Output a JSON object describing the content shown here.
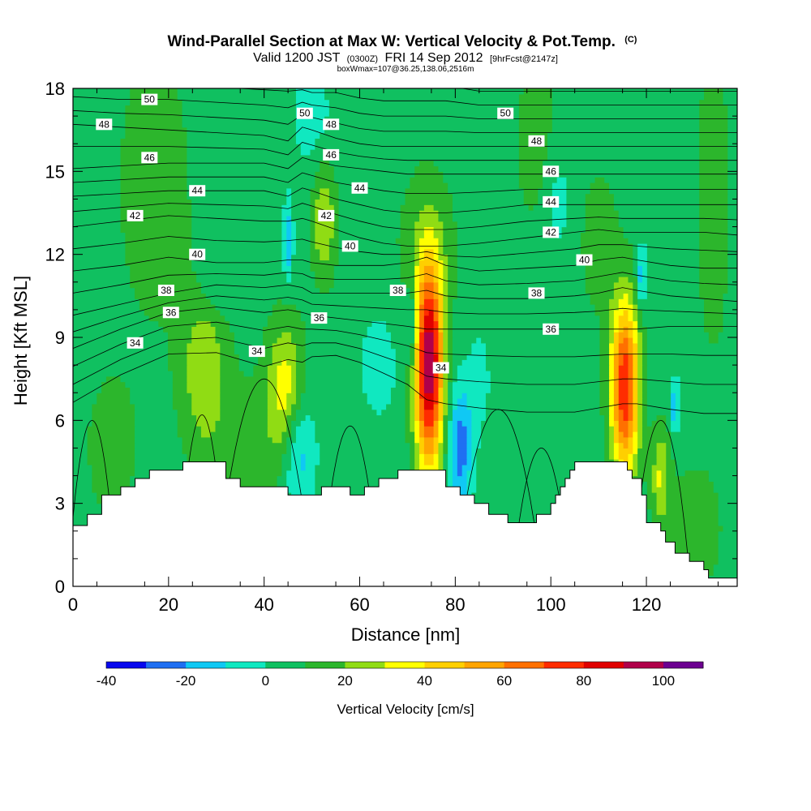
{
  "chart_data": {
    "type": "heatmap",
    "title": "Wind-Parallel Section at Max W: Vertical Velocity & Pot.Temp.",
    "title_mark": "(C)",
    "subtitle": {
      "valid": "Valid 1200 JST",
      "utc": "(0300Z)",
      "date": "FRI 14 Sep 2012",
      "forecast": "[9hrFcst@2147z]"
    },
    "box_info": "boxWmax=107@36.25,138.06,2516m",
    "xlabel": "Distance [nm]",
    "ylabel": "Height [Kft MSL]",
    "xlim": [
      0,
      139
    ],
    "ylim": [
      0,
      18
    ],
    "x_ticks": [
      "0",
      "20",
      "40",
      "60",
      "80",
      "100",
      "120"
    ],
    "y_ticks": [
      "0",
      "3",
      "6",
      "9",
      "12",
      "15",
      "18"
    ],
    "background_w": 5,
    "w_features": [
      {
        "x": 74.5,
        "z": 8.0,
        "sx": 2.1,
        "sz": 2.6,
        "w": 95
      },
      {
        "x": 115.5,
        "z": 7.2,
        "sx": 2.1,
        "sz": 2.2,
        "w": 75
      },
      {
        "x": 44.5,
        "z": 7.0,
        "sx": 2.8,
        "sz": 1.8,
        "w": 32
      },
      {
        "x": 27.5,
        "z": 7.8,
        "sx": 3.5,
        "sz": 2.2,
        "w": 22
      },
      {
        "x": 52.5,
        "z": 13.2,
        "sx": 1.8,
        "sz": 1.5,
        "w": 25
      },
      {
        "x": 123.0,
        "z": 4.0,
        "sx": 1.3,
        "sz": 1.2,
        "w": 25
      },
      {
        "x": 17.0,
        "z": 14.5,
        "sx": 6.0,
        "sz": 4.0,
        "w": 10
      },
      {
        "x": 74.0,
        "z": 12.5,
        "sx": 5.0,
        "sz": 2.0,
        "w": 10
      },
      {
        "x": 97.0,
        "z": 16.0,
        "sx": 3.0,
        "sz": 2.2,
        "w": 12
      },
      {
        "x": 134.0,
        "z": 14.0,
        "sx": 2.5,
        "sz": 4.0,
        "w": 12
      },
      {
        "x": 110.0,
        "z": 12.5,
        "sx": 3.0,
        "sz": 2.0,
        "w": 10
      },
      {
        "x": 8.0,
        "z": 5.0,
        "sx": 4.0,
        "sz": 2.0,
        "w": 10
      },
      {
        "x": 37.0,
        "z": 5.0,
        "sx": 6.0,
        "sz": 2.0,
        "w": 8
      },
      {
        "x": 130.0,
        "z": 2.0,
        "sx": 5.0,
        "sz": 2.0,
        "w": 9
      },
      {
        "x": 47.0,
        "z": 5.0,
        "sx": 2.5,
        "sz": 1.5,
        "w": -26
      },
      {
        "x": 81.0,
        "z": 5.0,
        "sx": 1.8,
        "sz": 1.6,
        "w": -30
      },
      {
        "x": 71.0,
        "z": 9.5,
        "sx": 0.9,
        "sz": 1.0,
        "w": -24
      },
      {
        "x": 45.0,
        "z": 12.5,
        "sx": 0.7,
        "sz": 1.0,
        "w": -25
      },
      {
        "x": 119.0,
        "z": 11.2,
        "sx": 0.7,
        "sz": 0.8,
        "w": -25
      },
      {
        "x": 126.0,
        "z": 6.5,
        "sx": 0.6,
        "sz": 0.7,
        "w": -25
      },
      {
        "x": 50.0,
        "z": 17.0,
        "sx": 3.0,
        "sz": 1.5,
        "w": -10
      },
      {
        "x": 101.0,
        "z": 14.0,
        "sx": 2.5,
        "sz": 1.5,
        "w": -10
      },
      {
        "x": 64.0,
        "z": 8.0,
        "sx": 3.0,
        "sz": 1.5,
        "w": -10
      },
      {
        "x": 30.0,
        "z": 11.0,
        "sx": 3.0,
        "sz": 0.8,
        "w": -10
      },
      {
        "x": 85.0,
        "z": 7.5,
        "sx": 2.0,
        "sz": 1.5,
        "w": -8
      }
    ],
    "terrain": [
      [
        0,
        2.2
      ],
      [
        3,
        2.2
      ],
      [
        3,
        2.6
      ],
      [
        6,
        2.6
      ],
      [
        6,
        3.3
      ],
      [
        10,
        3.3
      ],
      [
        10,
        3.6
      ],
      [
        13,
        3.6
      ],
      [
        13,
        3.9
      ],
      [
        16,
        3.9
      ],
      [
        16,
        4.2
      ],
      [
        23,
        4.2
      ],
      [
        23,
        4.5
      ],
      [
        32,
        4.5
      ],
      [
        32,
        3.9
      ],
      [
        35,
        3.9
      ],
      [
        35,
        3.6
      ],
      [
        45,
        3.6
      ],
      [
        45,
        3.3
      ],
      [
        52,
        3.3
      ],
      [
        52,
        3.6
      ],
      [
        58,
        3.6
      ],
      [
        58,
        3.3
      ],
      [
        61,
        3.3
      ],
      [
        61,
        3.6
      ],
      [
        64,
        3.6
      ],
      [
        64,
        3.9
      ],
      [
        68,
        3.9
      ],
      [
        68,
        4.2
      ],
      [
        78,
        4.2
      ],
      [
        78,
        3.6
      ],
      [
        81,
        3.6
      ],
      [
        81,
        3.3
      ],
      [
        84,
        3.3
      ],
      [
        84,
        3.0
      ],
      [
        87,
        3.0
      ],
      [
        87,
        2.6
      ],
      [
        91,
        2.6
      ],
      [
        91,
        2.3
      ],
      [
        97,
        2.3
      ],
      [
        97,
        2.6
      ],
      [
        100,
        2.6
      ],
      [
        100,
        3.0
      ],
      [
        101,
        3.0
      ],
      [
        101,
        3.3
      ],
      [
        102,
        3.3
      ],
      [
        102,
        3.6
      ],
      [
        103,
        3.6
      ],
      [
        103,
        3.9
      ],
      [
        104,
        3.9
      ],
      [
        104,
        4.2
      ],
      [
        105,
        4.2
      ],
      [
        105,
        4.5
      ],
      [
        116,
        4.5
      ],
      [
        116,
        4.2
      ],
      [
        117,
        4.2
      ],
      [
        117,
        3.9
      ],
      [
        119,
        3.9
      ],
      [
        119,
        3.3
      ],
      [
        120,
        3.3
      ],
      [
        120,
        2.3
      ],
      [
        123,
        2.3
      ],
      [
        123,
        2.0
      ],
      [
        124,
        2.0
      ],
      [
        124,
        1.6
      ],
      [
        126,
        1.6
      ],
      [
        126,
        1.2
      ],
      [
        129,
        1.2
      ],
      [
        129,
        0.9
      ],
      [
        132,
        0.9
      ],
      [
        132,
        0.6
      ],
      [
        133,
        0.6
      ],
      [
        133,
        0.3
      ],
      [
        139,
        0.3
      ]
    ],
    "isentrope_levels": [
      33,
      34,
      35,
      36,
      37,
      38,
      39,
      40,
      41,
      42,
      43,
      44,
      45,
      46,
      47,
      48,
      49,
      50,
      51,
      52
    ],
    "theta_heights": {
      "x": [
        0,
        10,
        20,
        30,
        40,
        45,
        48,
        50,
        55,
        60,
        65,
        70,
        74,
        78,
        85,
        95,
        105,
        110,
        115,
        118,
        125,
        132,
        139
      ],
      "34": [
        7.3,
        8.2,
        8.9,
        9.0,
        8.6,
        8.8,
        8.7,
        8.8,
        8.8,
        8.6,
        8.3,
        8.0,
        7.6,
        7.5,
        7.4,
        7.3,
        7.3,
        7.4,
        7.5,
        7.5,
        7.4,
        7.3,
        7.3
      ],
      "36": [
        8.6,
        9.3,
        9.9,
        10.1,
        9.9,
        10.0,
        9.9,
        9.8,
        9.7,
        9.6,
        9.5,
        9.4,
        9.3,
        9.3,
        9.3,
        9.3,
        9.3,
        9.3,
        9.3,
        9.3,
        9.4,
        9.4,
        9.4
      ],
      "38": [
        9.8,
        10.2,
        10.6,
        10.9,
        10.8,
        10.9,
        10.8,
        10.6,
        10.6,
        10.6,
        10.6,
        10.6,
        10.7,
        10.5,
        10.4,
        10.4,
        10.5,
        10.6,
        10.8,
        10.7,
        10.5,
        10.4,
        10.3
      ],
      "40": [
        11.4,
        11.6,
        11.9,
        11.7,
        11.7,
        11.8,
        11.8,
        11.7,
        11.6,
        11.6,
        11.6,
        11.7,
        11.9,
        11.6,
        11.4,
        11.5,
        11.6,
        11.8,
        11.9,
        11.8,
        11.6,
        11.5,
        11.5
      ],
      "42": [
        13.0,
        13.2,
        13.4,
        13.3,
        13.2,
        13.2,
        13.3,
        13.2,
        12.9,
        12.6,
        12.4,
        12.3,
        12.3,
        12.3,
        12.4,
        12.6,
        12.8,
        12.9,
        12.8,
        12.8,
        12.8,
        12.8,
        12.7
      ],
      "44": [
        14.1,
        14.2,
        14.3,
        14.3,
        14.3,
        14.1,
        14.4,
        14.3,
        14.0,
        13.8,
        13.6,
        13.5,
        13.5,
        13.5,
        13.6,
        13.8,
        13.8,
        13.8,
        13.8,
        13.8,
        13.8,
        13.8,
        13.8
      ],
      "46": [
        15.1,
        15.2,
        15.3,
        15.3,
        15.3,
        15.1,
        15.5,
        15.4,
        15.2,
        15.1,
        15.0,
        14.9,
        14.9,
        14.9,
        14.9,
        14.9,
        14.9,
        14.9,
        14.9,
        14.9,
        14.9,
        14.9,
        14.9
      ],
      "48": [
        16.7,
        16.6,
        16.5,
        16.4,
        16.3,
        16.1,
        16.6,
        16.5,
        16.2,
        16.0,
        15.9,
        15.9,
        15.9,
        15.9,
        15.9,
        15.9,
        15.9,
        15.9,
        15.9,
        15.9,
        15.9,
        15.9,
        15.9
      ],
      "50": [
        17.7,
        17.6,
        17.6,
        17.5,
        17.4,
        17.3,
        17.5,
        17.4,
        17.3,
        17.1,
        17.0,
        17.0,
        17.0,
        17.0,
        16.9,
        16.9,
        16.9,
        16.9,
        16.9,
        16.9,
        16.9,
        16.9,
        16.9
      ]
    },
    "low_contours": [
      {
        "cx": 4,
        "h": 6.0,
        "hw": 5
      },
      {
        "cx": 40,
        "h": 7.5,
        "hw": 10
      },
      {
        "cx": 27,
        "h": 6.2,
        "hw": 5
      },
      {
        "cx": 58,
        "h": 5.8,
        "hw": 6
      },
      {
        "cx": 89,
        "h": 6.4,
        "hw": 9
      },
      {
        "cx": 98,
        "h": 5.0,
        "hw": 6
      },
      {
        "cx": 123,
        "h": 6.0,
        "hw": 6
      }
    ],
    "contour_labels": [
      {
        "text": "50",
        "x": 16,
        "z": 17.6
      },
      {
        "text": "48",
        "x": 6.5,
        "z": 16.7
      },
      {
        "text": "46",
        "x": 16,
        "z": 15.5
      },
      {
        "text": "44",
        "x": 26,
        "z": 14.3
      },
      {
        "text": "42",
        "x": 13,
        "z": 13.4
      },
      {
        "text": "40",
        "x": 26,
        "z": 12.0
      },
      {
        "text": "38",
        "x": 19.5,
        "z": 10.7
      },
      {
        "text": "36",
        "x": 20.5,
        "z": 9.9
      },
      {
        "text": "34",
        "x": 13,
        "z": 8.8
      },
      {
        "text": "34",
        "x": 38.5,
        "z": 8.5
      },
      {
        "text": "50",
        "x": 48.5,
        "z": 17.1
      },
      {
        "text": "48",
        "x": 54,
        "z": 16.7
      },
      {
        "text": "46",
        "x": 54,
        "z": 15.6
      },
      {
        "text": "44",
        "x": 60,
        "z": 14.4
      },
      {
        "text": "42",
        "x": 53,
        "z": 13.4
      },
      {
        "text": "40",
        "x": 58,
        "z": 12.3
      },
      {
        "text": "38",
        "x": 68,
        "z": 10.7
      },
      {
        "text": "36",
        "x": 51.5,
        "z": 9.7
      },
      {
        "text": "34",
        "x": 77,
        "z": 7.9
      },
      {
        "text": "50",
        "x": 90.5,
        "z": 17.1
      },
      {
        "text": "48",
        "x": 97,
        "z": 16.1
      },
      {
        "text": "46",
        "x": 100,
        "z": 15.0
      },
      {
        "text": "44",
        "x": 100,
        "z": 13.9
      },
      {
        "text": "42",
        "x": 100,
        "z": 12.8
      },
      {
        "text": "40",
        "x": 107,
        "z": 11.8
      },
      {
        "text": "38",
        "x": 97,
        "z": 10.6
      },
      {
        "text": "36",
        "x": 100,
        "z": 9.3
      }
    ],
    "colorbar": {
      "label": "Vertical Velocity [cm/s]",
      "bounds": [
        -40,
        -30,
        -20,
        -10,
        0,
        10,
        20,
        30,
        40,
        50,
        60,
        70,
        80,
        90,
        100,
        110
      ],
      "colors": [
        "#0808ee",
        "#1f6ff2",
        "#10c8f4",
        "#10e8c0",
        "#10c060",
        "#2cb62c",
        "#90dc14",
        "#ffff00",
        "#ffcf00",
        "#ffa400",
        "#ff7000",
        "#ff2c00",
        "#e00000",
        "#b0004a",
        "#6c0090"
      ],
      "tick_labels": [
        "-40",
        "-20",
        "0",
        "20",
        "40",
        "60",
        "80",
        "100"
      ]
    }
  }
}
